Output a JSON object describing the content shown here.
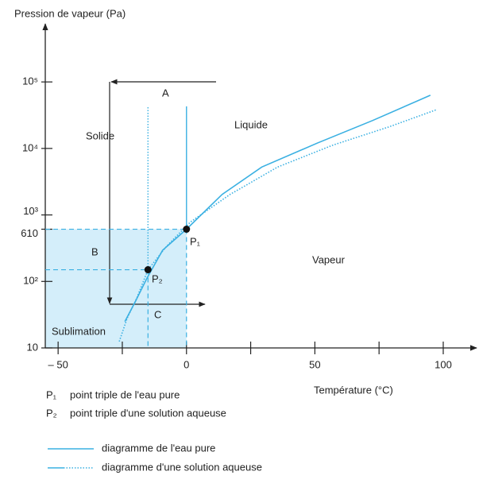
{
  "chart_data": {
    "type": "line",
    "ylabel": "Pression de vapeur (Pa)",
    "xlabel": "Température (°C)",
    "log_y": true,
    "xlim": [
      -55,
      113
    ],
    "ylim": [
      10,
      600000
    ],
    "xticks": [
      {
        "value": -50,
        "label": "– 50"
      },
      0,
      50,
      100
    ],
    "xminor": [
      -25,
      25,
      75
    ],
    "yticks": [
      10,
      {
        "value": 100,
        "label": "10²"
      },
      610,
      {
        "value": 1000,
        "label": "10³"
      },
      {
        "value": 10000,
        "label": "10⁴"
      },
      {
        "value": 100000,
        "label": "10⁵"
      }
    ],
    "series": [
      {
        "name": "diagramme de l'eau pure",
        "color": "#3ab0e2",
        "style": "solid",
        "x": [
          -24,
          -20,
          -15.4,
          -9.3,
          0,
          13.9,
          29.3,
          50.9,
          72.5,
          95
        ],
        "values": [
          25,
          49,
          112,
          295,
          610,
          2040,
          5250,
          12000,
          26300,
          63000
        ]
      },
      {
        "name": "diagramme d'une solution aqueuse",
        "color": "#3ab0e2",
        "style": "dotted",
        "x": [
          -26.2,
          -23.1,
          -19.4,
          -15,
          -7.7,
          1.5,
          17,
          35.5,
          57,
          78.7,
          97.2
        ],
        "values": [
          12.5,
          28,
          56,
          150,
          340,
          780,
          2040,
          5250,
          11200,
          21000,
          38000
        ]
      }
    ],
    "points": [
      {
        "name": "P₁",
        "x": 0,
        "y": 610,
        "top": 43000,
        "description": "point triple de l'eau pure"
      },
      {
        "name": "P₂",
        "x": -15,
        "y": 150,
        "top": 43000,
        "description": "point triple d'une solution aqueuse"
      }
    ],
    "shade_color": "#d4eefa",
    "regions": [
      "Solide",
      "Liquide",
      "Vapeur",
      "Sublimation"
    ],
    "arrows": [
      "A",
      "B",
      "C"
    ]
  }
}
